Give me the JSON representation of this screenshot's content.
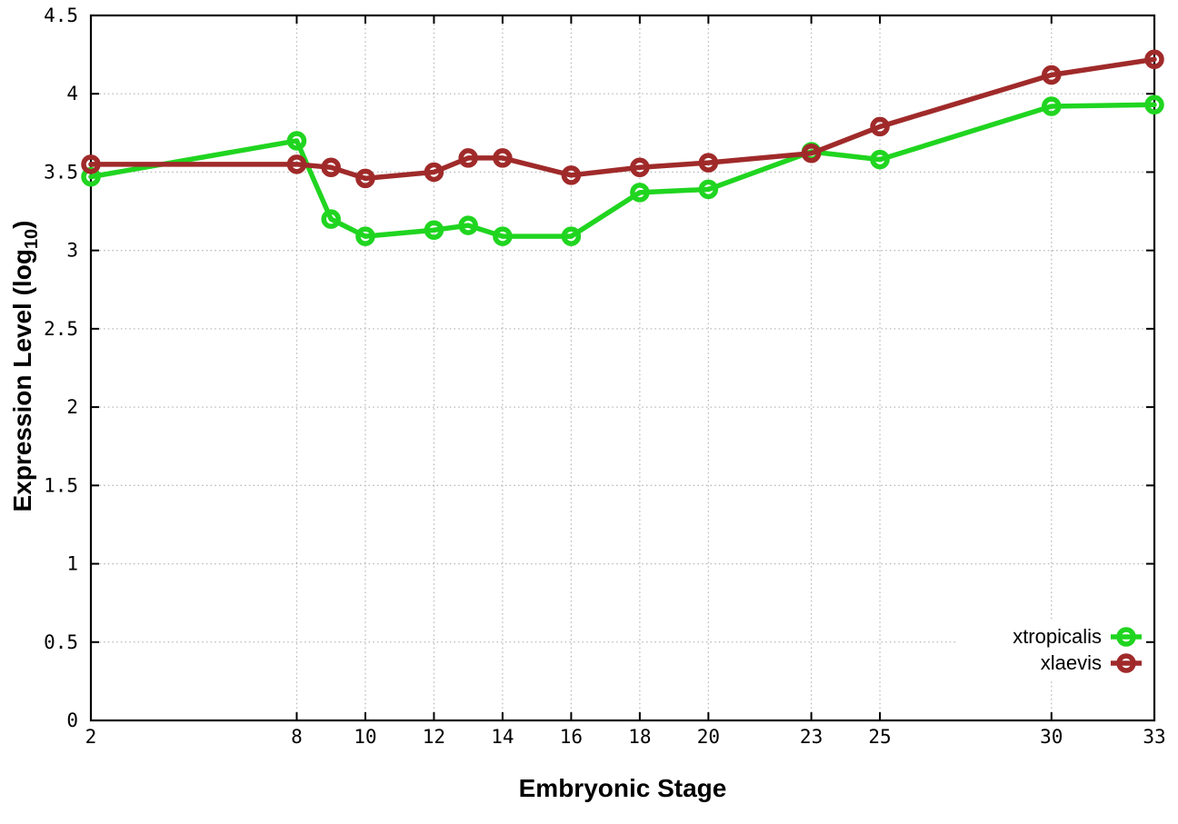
{
  "figure": {
    "background": "#ffffff",
    "plot_background": "#ffffff",
    "axis_color": "#000000",
    "grid_color": "#b8b8b8"
  },
  "chart_data": {
    "type": "line",
    "title": "",
    "xlabel": "Embryonic Stage",
    "ylabel": "Expression Level (log10)",
    "ylabel_parts": {
      "main": "Expression Level (log",
      "sub": "10",
      "close": ")"
    },
    "x": [
      2,
      8,
      9,
      10,
      12,
      13,
      14,
      16,
      18,
      20,
      23,
      25,
      30,
      33
    ],
    "series": [
      {
        "name": "xtropicalis",
        "color": "#20d520",
        "marker": "open-circle",
        "values": [
          3.47,
          3.7,
          3.2,
          3.09,
          3.13,
          3.16,
          3.09,
          3.09,
          3.37,
          3.39,
          3.63,
          3.58,
          3.92,
          3.93
        ]
      },
      {
        "name": "xlaevis",
        "color": "#a02a2a",
        "marker": "open-circle",
        "values": [
          3.55,
          3.55,
          3.53,
          3.46,
          3.5,
          3.59,
          3.59,
          3.48,
          3.53,
          3.56,
          3.62,
          3.79,
          4.12,
          4.22
        ]
      }
    ],
    "xticks": {
      "values": [
        2,
        8,
        10,
        12,
        14,
        16,
        18,
        20,
        23,
        25,
        30,
        33
      ],
      "labels": [
        "2",
        "8",
        "10",
        "12",
        "14",
        "16",
        "18",
        "20",
        "23",
        "25",
        "30",
        "33"
      ]
    },
    "yticks": {
      "values": [
        0,
        0.5,
        1,
        1.5,
        2,
        2.5,
        3,
        3.5,
        4,
        4.5
      ],
      "labels": [
        "0",
        "0.5",
        "1",
        "1.5",
        "2",
        "2.5",
        "3",
        "3.5",
        "4",
        "4.5"
      ]
    },
    "xlim": [
      2,
      33
    ],
    "ylim": [
      0,
      4.5
    ],
    "grid": true,
    "legend_position": "inside-bottom-right",
    "legend": [
      "xtropicalis",
      "xlaevis"
    ]
  }
}
